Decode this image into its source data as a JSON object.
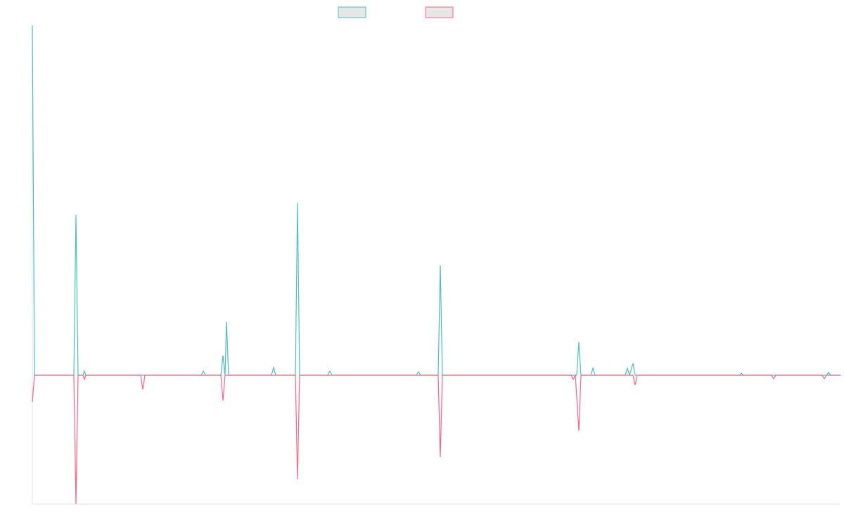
{
  "chart_data": {
    "type": "line",
    "xlim": [
      0,
      1149
    ],
    "ylim": [
      -183,
      497
    ],
    "series": [
      {
        "color": "#4bc0c0",
        "x": [
          0,
          3,
          59,
          62,
          65,
          72,
          74,
          76,
          240,
          243,
          246,
          268,
          271,
          274,
          276,
          279,
          340,
          343,
          346,
          374,
          377,
          380,
          420,
          423,
          426,
          546,
          549,
          552,
          577,
          580,
          583,
          774,
          777,
          780,
          794,
          797,
          800,
          843,
          846,
          849,
          854,
          857,
          1005,
          1008,
          1011,
          1129,
          1132,
          1135,
          1149
        ],
        "values": [
          497,
          0,
          0,
          228,
          0,
          0,
          6,
          0,
          0,
          6,
          0,
          0,
          28,
          0,
          76,
          0,
          0,
          11,
          0,
          0,
          245,
          0,
          0,
          6,
          0,
          0,
          5,
          0,
          0,
          156,
          0,
          0,
          47,
          0,
          0,
          10,
          0,
          0,
          10,
          0,
          17,
          0,
          0,
          3,
          0,
          0,
          4,
          0,
          0
        ]
      },
      {
        "color": "#ff6384",
        "x": [
          0,
          3,
          59,
          62,
          65,
          72,
          74,
          76,
          154,
          157,
          160,
          268,
          271,
          274,
          374,
          377,
          380,
          577,
          580,
          583,
          766,
          769,
          772,
          777,
          780,
          854,
          857,
          860,
          1051,
          1054,
          1057,
          1123,
          1126,
          1129,
          1149
        ],
        "values": [
          -38,
          0,
          0,
          -183,
          0,
          0,
          -6,
          0,
          0,
          -20,
          0,
          0,
          -36,
          0,
          0,
          -148,
          0,
          0,
          -116,
          0,
          0,
          -6,
          0,
          -79,
          0,
          0,
          -14,
          0,
          0,
          -5,
          0,
          0,
          -5,
          0,
          0
        ]
      }
    ]
  }
}
